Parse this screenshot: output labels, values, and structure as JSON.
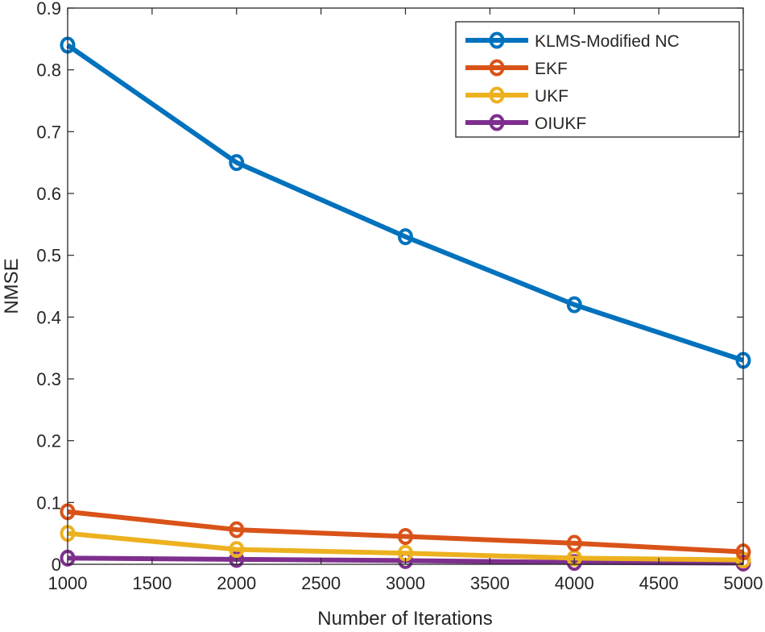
{
  "chart_data": {
    "type": "line",
    "title": "",
    "xlabel": "Number of Iterations",
    "ylabel": "NMSE",
    "xlim": [
      1000,
      5000
    ],
    "ylim": [
      0,
      0.9
    ],
    "xticks": [
      "1000",
      "1500",
      "2000",
      "2500",
      "3000",
      "3500",
      "4000",
      "4500",
      "5000"
    ],
    "yticks": [
      "0",
      "0.1",
      "0.2",
      "0.3",
      "0.4",
      "0.5",
      "0.6",
      "0.7",
      "0.8",
      "0.9"
    ],
    "grid": false,
    "legend_position": "top-right",
    "x": [
      1000,
      2000,
      3000,
      4000,
      5000
    ],
    "series": [
      {
        "name": "KLMS-Modified NC",
        "color": "#0072BD",
        "values": [
          0.84,
          0.65,
          0.53,
          0.42,
          0.33
        ]
      },
      {
        "name": "EKF",
        "color": "#D95319",
        "values": [
          0.085,
          0.056,
          0.045,
          0.034,
          0.02
        ]
      },
      {
        "name": "UKF",
        "color": "#EDB120",
        "values": [
          0.05,
          0.024,
          0.018,
          0.01,
          0.007
        ]
      },
      {
        "name": "OIUKF",
        "color": "#7E2F8E",
        "values": [
          0.01,
          0.008,
          0.006,
          0.003,
          0.002
        ]
      }
    ]
  }
}
